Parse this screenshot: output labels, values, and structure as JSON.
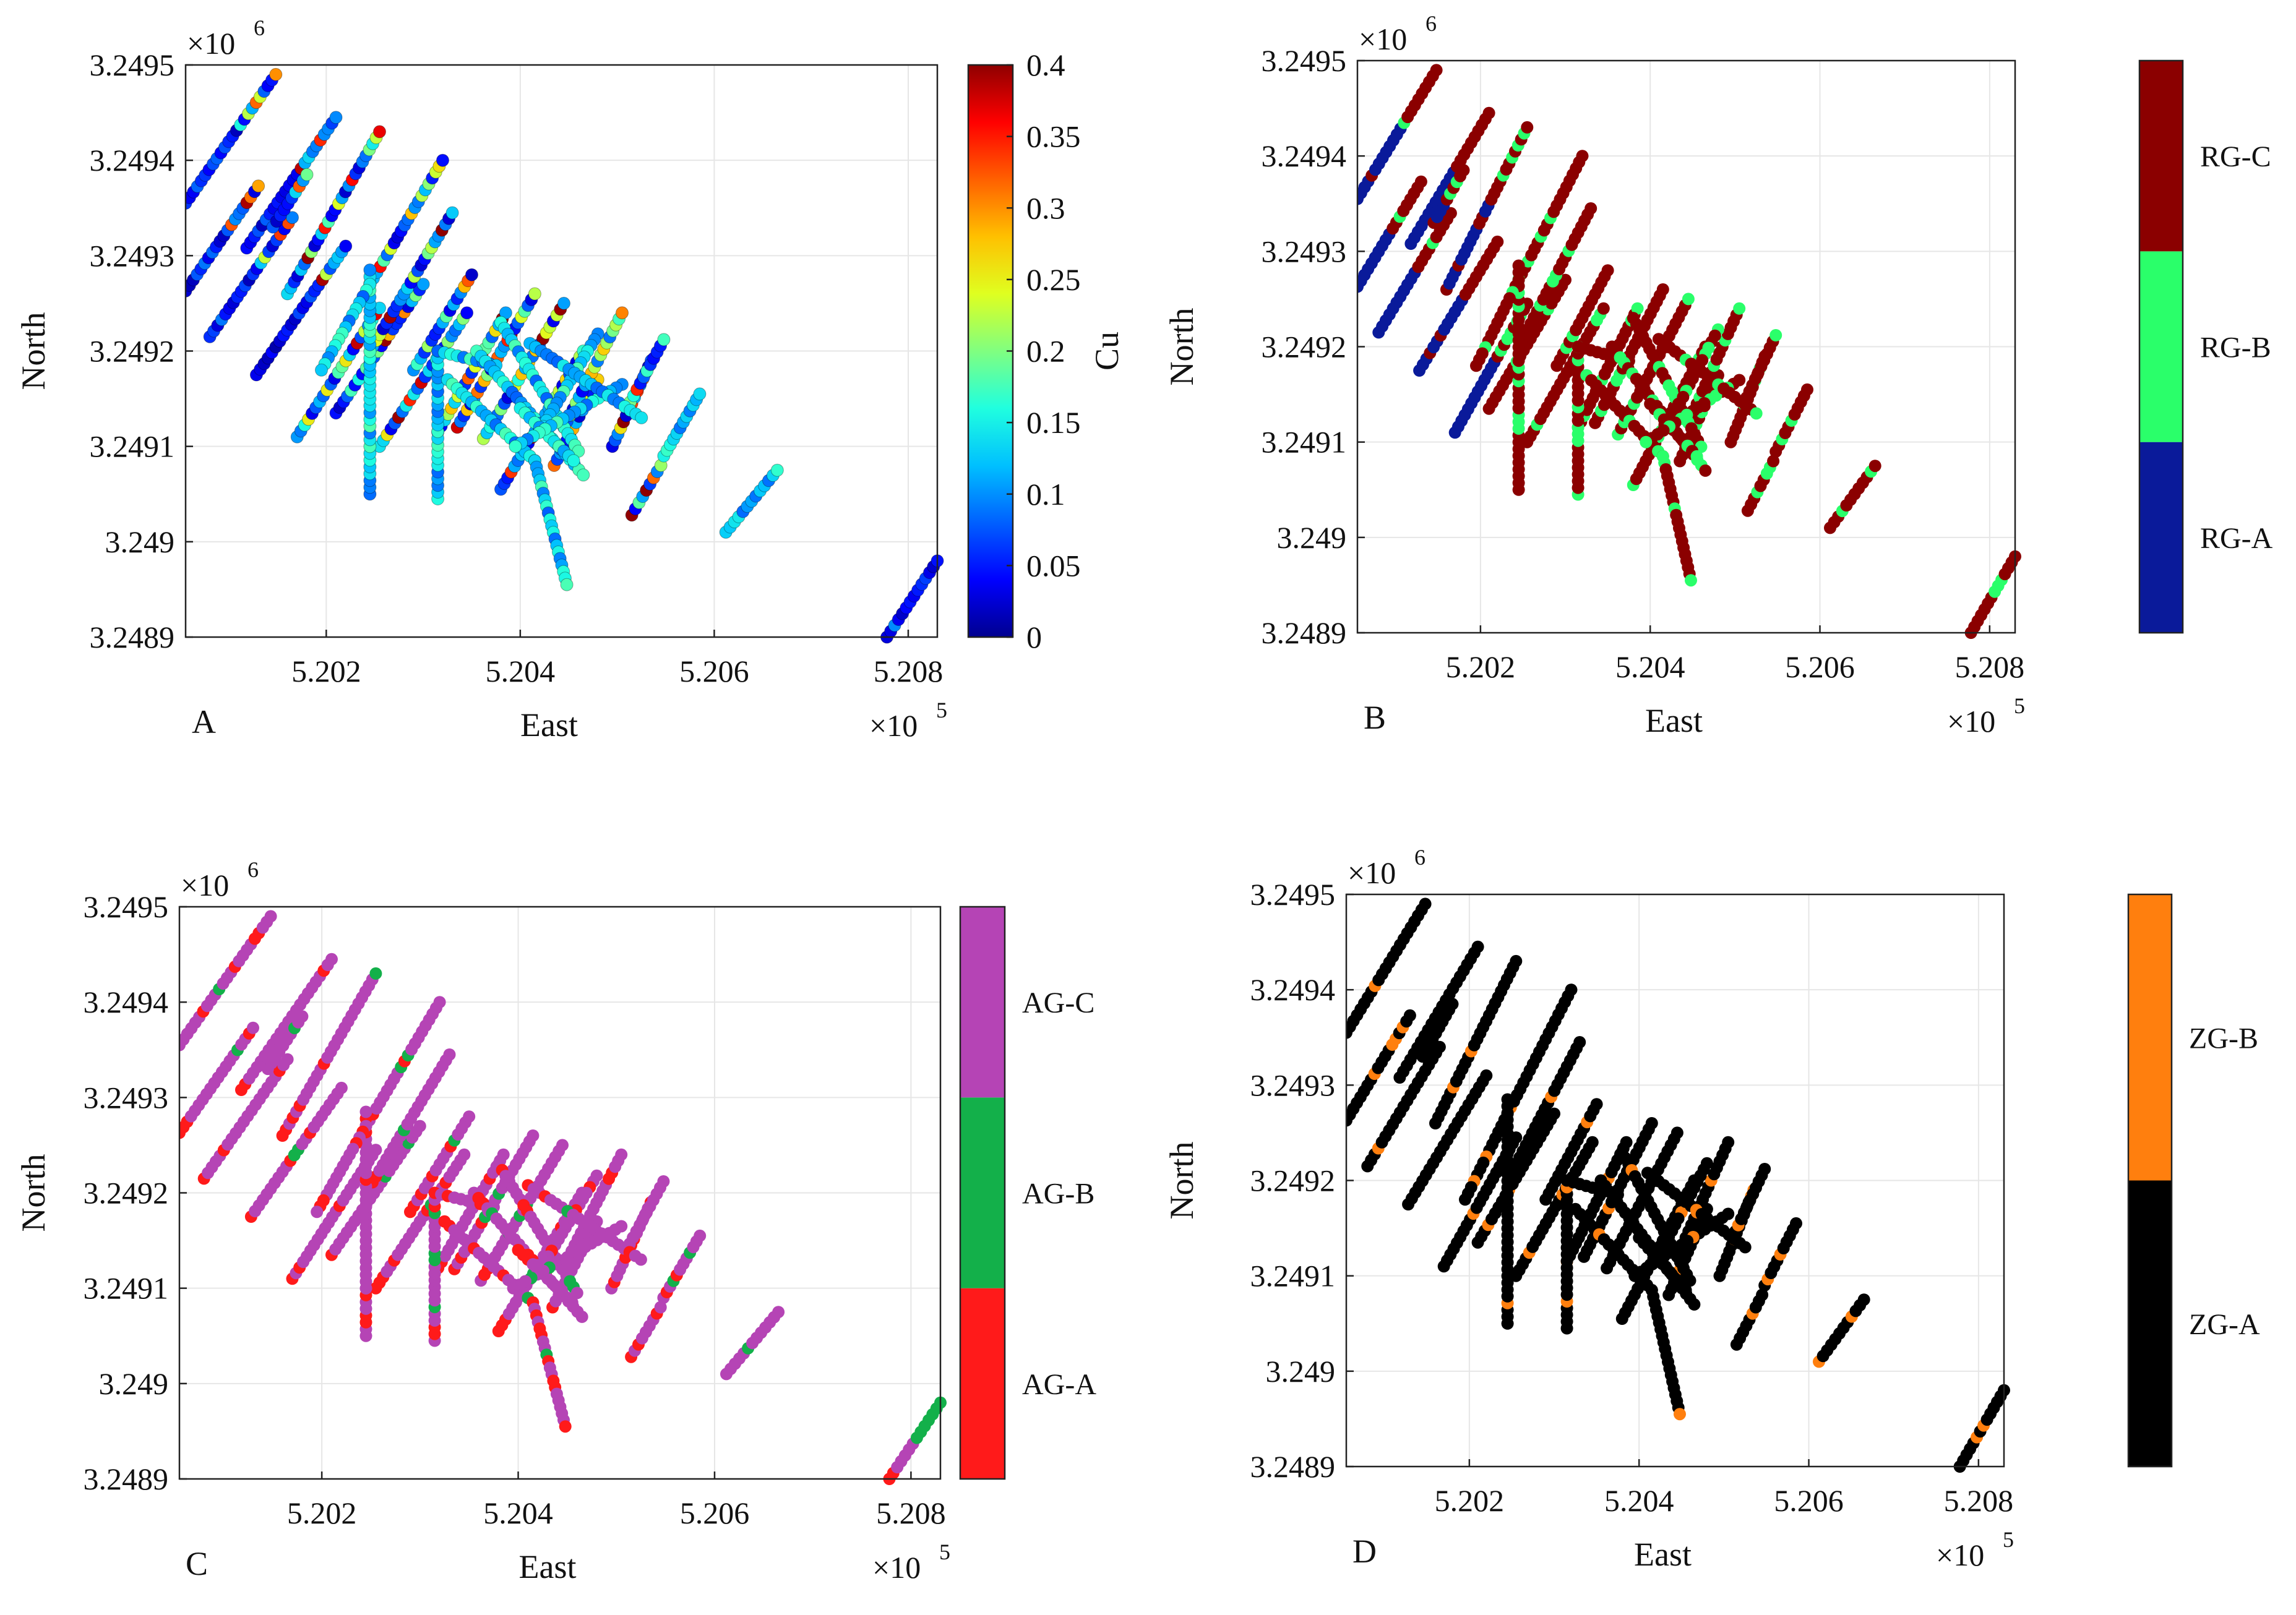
{
  "figure": {
    "palette": {
      "cu": [
        "#00008f",
        "#0000ff",
        "#0060ff",
        "#00c0ff",
        "#20ffdf",
        "#80ff80",
        "#dfff20",
        "#ffc000",
        "#ff6000",
        "#ff0000",
        "#8f0000"
      ],
      "rg": [
        "#0a1a9a",
        "#2aff6a",
        "#8b0000"
      ],
      "ag": [
        "#ff1a1a",
        "#13b04a",
        "#b544b5"
      ],
      "zg": [
        "#000000",
        "#ff7f0e"
      ],
      "grid": "#e6e6e6",
      "axis": "#222222"
    }
  },
  "chart_data": [
    {
      "id": "A",
      "panel_label": "A",
      "type": "scatter",
      "xlabel": "East",
      "ylabel": "North",
      "x_multiplier": "×10",
      "x_exponent": "5",
      "y_multiplier": "×10",
      "y_exponent": "6",
      "xlim": [
        520055,
        520830
      ],
      "ylim": [
        3248900,
        3249500
      ],
      "x_ticks": [
        "5.202",
        "5.204",
        "5.206",
        "5.208"
      ],
      "x_tick_values": [
        520200,
        520400,
        520600,
        520800
      ],
      "y_ticks": [
        "3.2489",
        "3.249",
        "3.2491",
        "3.2492",
        "3.2493",
        "3.2494",
        "3.2495"
      ],
      "y_tick_values": [
        3248900,
        3249000,
        3249100,
        3249200,
        3249300,
        3249400,
        3249500
      ],
      "colorbar": {
        "type": "continuous",
        "label": "Cu",
        "ticks": [
          "0",
          "0.05",
          "0.1",
          "0.15",
          "0.2",
          "0.25",
          "0.3",
          "0.35",
          "0.4"
        ],
        "range": [
          0,
          0.4
        ]
      }
    },
    {
      "id": "B",
      "panel_label": "B",
      "type": "scatter",
      "xlabel": "East",
      "ylabel": "North",
      "x_multiplier": "×10",
      "x_exponent": "5",
      "y_multiplier": "×10",
      "y_exponent": "6",
      "xlim": [
        520055,
        520830
      ],
      "ylim": [
        3248900,
        3249500
      ],
      "x_ticks": [
        "5.202",
        "5.204",
        "5.206",
        "5.208"
      ],
      "x_tick_values": [
        520200,
        520400,
        520600,
        520800
      ],
      "y_ticks": [
        "3.2489",
        "3.249",
        "3.2491",
        "3.2492",
        "3.2493",
        "3.2494",
        "3.2495"
      ],
      "y_tick_values": [
        3248900,
        3249000,
        3249100,
        3249200,
        3249300,
        3249400,
        3249500
      ],
      "colorbar": {
        "type": "categorical",
        "categories": [
          "RG-A",
          "RG-B",
          "RG-C"
        ]
      }
    },
    {
      "id": "C",
      "panel_label": "C",
      "type": "scatter",
      "xlabel": "East",
      "ylabel": "North",
      "x_multiplier": "×10",
      "x_exponent": "5",
      "y_multiplier": "×10",
      "y_exponent": "6",
      "xlim": [
        520055,
        520830
      ],
      "ylim": [
        3248900,
        3249500
      ],
      "x_ticks": [
        "5.202",
        "5.204",
        "5.206",
        "5.208"
      ],
      "x_tick_values": [
        520200,
        520400,
        520600,
        520800
      ],
      "y_ticks": [
        "3.2489",
        "3.249",
        "3.2491",
        "3.2492",
        "3.2493",
        "3.2494",
        "3.2495"
      ],
      "y_tick_values": [
        3248900,
        3249000,
        3249100,
        3249200,
        3249300,
        3249400,
        3249500
      ],
      "colorbar": {
        "type": "categorical",
        "categories": [
          "AG-A",
          "AG-B",
          "AG-C"
        ]
      }
    },
    {
      "id": "D",
      "panel_label": "D",
      "type": "scatter",
      "xlabel": "East",
      "ylabel": "North",
      "x_multiplier": "×10",
      "x_exponent": "5",
      "y_multiplier": "×10",
      "y_exponent": "6",
      "xlim": [
        520055,
        520830
      ],
      "ylim": [
        3248900,
        3249500
      ],
      "x_ticks": [
        "5.202",
        "5.204",
        "5.206",
        "5.208"
      ],
      "x_tick_values": [
        520200,
        520400,
        520600,
        520800
      ],
      "y_ticks": [
        "3.2489",
        "3.249",
        "3.2491",
        "3.2492",
        "3.2493",
        "3.2494",
        "3.2495"
      ],
      "y_tick_values": [
        3248900,
        3249000,
        3249100,
        3249200,
        3249300,
        3249400,
        3249500
      ],
      "colorbar": {
        "type": "categorical",
        "categories": [
          "ZG-A",
          "ZG-B"
        ]
      }
    }
  ],
  "drillholes": [
    {
      "x0": 520055,
      "y0": 3249263,
      "x1": 520130,
      "y1": 3249373
    },
    {
      "x0": 520055,
      "y0": 3249355,
      "x1": 520148,
      "y1": 3249490
    },
    {
      "x0": 520080,
      "y0": 3249215,
      "x1": 520165,
      "y1": 3249340
    },
    {
      "x0": 520118,
      "y0": 3249308,
      "x1": 520210,
      "y1": 3249445
    },
    {
      "x0": 520128,
      "y0": 3249175,
      "x1": 520220,
      "y1": 3249310
    },
    {
      "x0": 520145,
      "y0": 3249330,
      "x1": 520180,
      "y1": 3249385
    },
    {
      "x0": 520170,
      "y0": 3249110,
      "x1": 520255,
      "y1": 3249245
    },
    {
      "x0": 520160,
      "y0": 3249260,
      "x1": 520255,
      "y1": 3249430
    },
    {
      "x0": 520210,
      "y0": 3249135,
      "x1": 520300,
      "y1": 3249270
    },
    {
      "x0": 520248,
      "y0": 3249205,
      "x1": 520330,
      "y1": 3249345
    },
    {
      "x0": 520255,
      "y0": 3249100,
      "x1": 520345,
      "y1": 3249240
    },
    {
      "x0": 520245,
      "y0": 3249270,
      "x1": 520320,
      "y1": 3249400
    },
    {
      "x0": 520315,
      "y0": 3249115,
      "x1": 520385,
      "y1": 3249240
    },
    {
      "x0": 520290,
      "y0": 3249180,
      "x1": 520350,
      "y1": 3249280
    },
    {
      "x0": 520335,
      "y0": 3249120,
      "x1": 520415,
      "y1": 3249260
    },
    {
      "x0": 520362,
      "y0": 3249108,
      "x1": 520445,
      "y1": 3249250
    },
    {
      "x0": 520380,
      "y0": 3249055,
      "x1": 520465,
      "y1": 3249200
    },
    {
      "x0": 520435,
      "y0": 3249080,
      "x1": 520480,
      "y1": 3249170
    },
    {
      "x0": 520445,
      "y0": 3249120,
      "x1": 520505,
      "y1": 3249240
    },
    {
      "x0": 520495,
      "y0": 3249100,
      "x1": 520535,
      "y1": 3249190
    },
    {
      "x0": 520510,
      "y0": 3249140,
      "x1": 520548,
      "y1": 3249212
    },
    {
      "x0": 520515,
      "y0": 3249028,
      "x1": 520545,
      "y1": 3249080
    },
    {
      "x0": 520548,
      "y0": 3249090,
      "x1": 520585,
      "y1": 3249155
    },
    {
      "x0": 520612,
      "y0": 3249010,
      "x1": 520665,
      "y1": 3249075
    },
    {
      "x0": 520778,
      "y0": 3248900,
      "x1": 520830,
      "y1": 3248980
    },
    {
      "x0": 520245,
      "y0": 3249050,
      "x1": 520245,
      "y1": 3249285
    },
    {
      "x0": 520315,
      "y0": 3249045,
      "x1": 520315,
      "y1": 3249200
    },
    {
      "x0": 520245,
      "y0": 3249270,
      "x1": 520195,
      "y1": 3249180
    },
    {
      "x0": 520315,
      "y0": 3249200,
      "x1": 520375,
      "y1": 3249185
    },
    {
      "x0": 520355,
      "y0": 3249200,
      "x1": 520465,
      "y1": 3249070
    },
    {
      "x0": 520380,
      "y0": 3249230,
      "x1": 520460,
      "y1": 3249095
    },
    {
      "x0": 520325,
      "y0": 3249170,
      "x1": 520415,
      "y1": 3249085
    },
    {
      "x0": 520415,
      "y0": 3249085,
      "x1": 520448,
      "y1": 3248955
    },
    {
      "x0": 520480,
      "y0": 3249218,
      "x1": 520420,
      "y1": 3249115
    },
    {
      "x0": 520400,
      "y0": 3249140,
      "x1": 520455,
      "y1": 3249085
    },
    {
      "x0": 520505,
      "y0": 3249165,
      "x1": 520395,
      "y1": 3249100
    },
    {
      "x0": 520410,
      "y0": 3249208,
      "x1": 520525,
      "y1": 3249130
    }
  ]
}
